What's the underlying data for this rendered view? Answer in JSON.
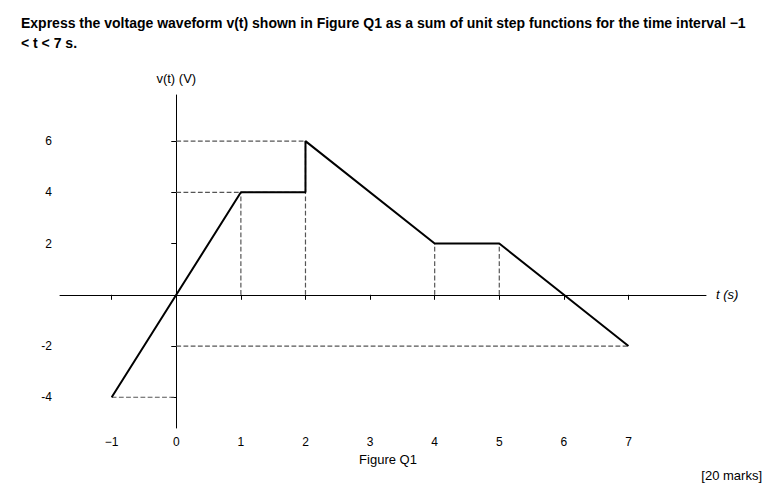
{
  "chart_data": {
    "type": "line",
    "title": "Express the voltage waveform v(t) shown in Figure Q1 as a sum of unit step functions for the time interval −1 < t < 7 s.",
    "x_label": "t (s)",
    "y_label": "v(t) (V)",
    "x": [
      -1,
      0,
      1,
      2,
      2,
      4,
      5,
      6,
      7,
      7
    ],
    "values": [
      -4,
      0,
      4,
      4,
      6,
      2,
      2,
      0,
      -2,
      -2
    ],
    "color": "#000000",
    "xlim": [
      -1.8,
      8.2
    ],
    "ylim": [
      -5.2,
      7.8
    ],
    "xticks": [
      {
        "value": -1,
        "label": "−1"
      },
      0,
      1,
      2,
      3,
      4,
      5,
      6,
      7
    ],
    "yticks": [
      -4,
      -2,
      2,
      4,
      6
    ],
    "grid": false,
    "reference_lines": {
      "color": "#555555",
      "line_style": "dashed",
      "horizontal": [
        {
          "y": 6,
          "x_start": 0,
          "x_end": 2
        },
        {
          "y": 4,
          "x_start": 0,
          "x_end": 2
        },
        {
          "y": -2,
          "x_start": 0,
          "x_end": 7
        },
        {
          "y": -4,
          "x_start": -1,
          "x_end": 0
        }
      ],
      "vertical": [
        {
          "x": 1,
          "y_start": 0,
          "y_end": 4
        },
        {
          "x": 2,
          "y_start": 0,
          "y_end": 6
        },
        {
          "x": 4,
          "y_start": 0,
          "y_end": 2
        },
        {
          "x": 5,
          "y_start": 0,
          "y_end": 2
        }
      ]
    },
    "annotations": [
      "Figure Q1",
      "[20 marks]"
    ]
  }
}
